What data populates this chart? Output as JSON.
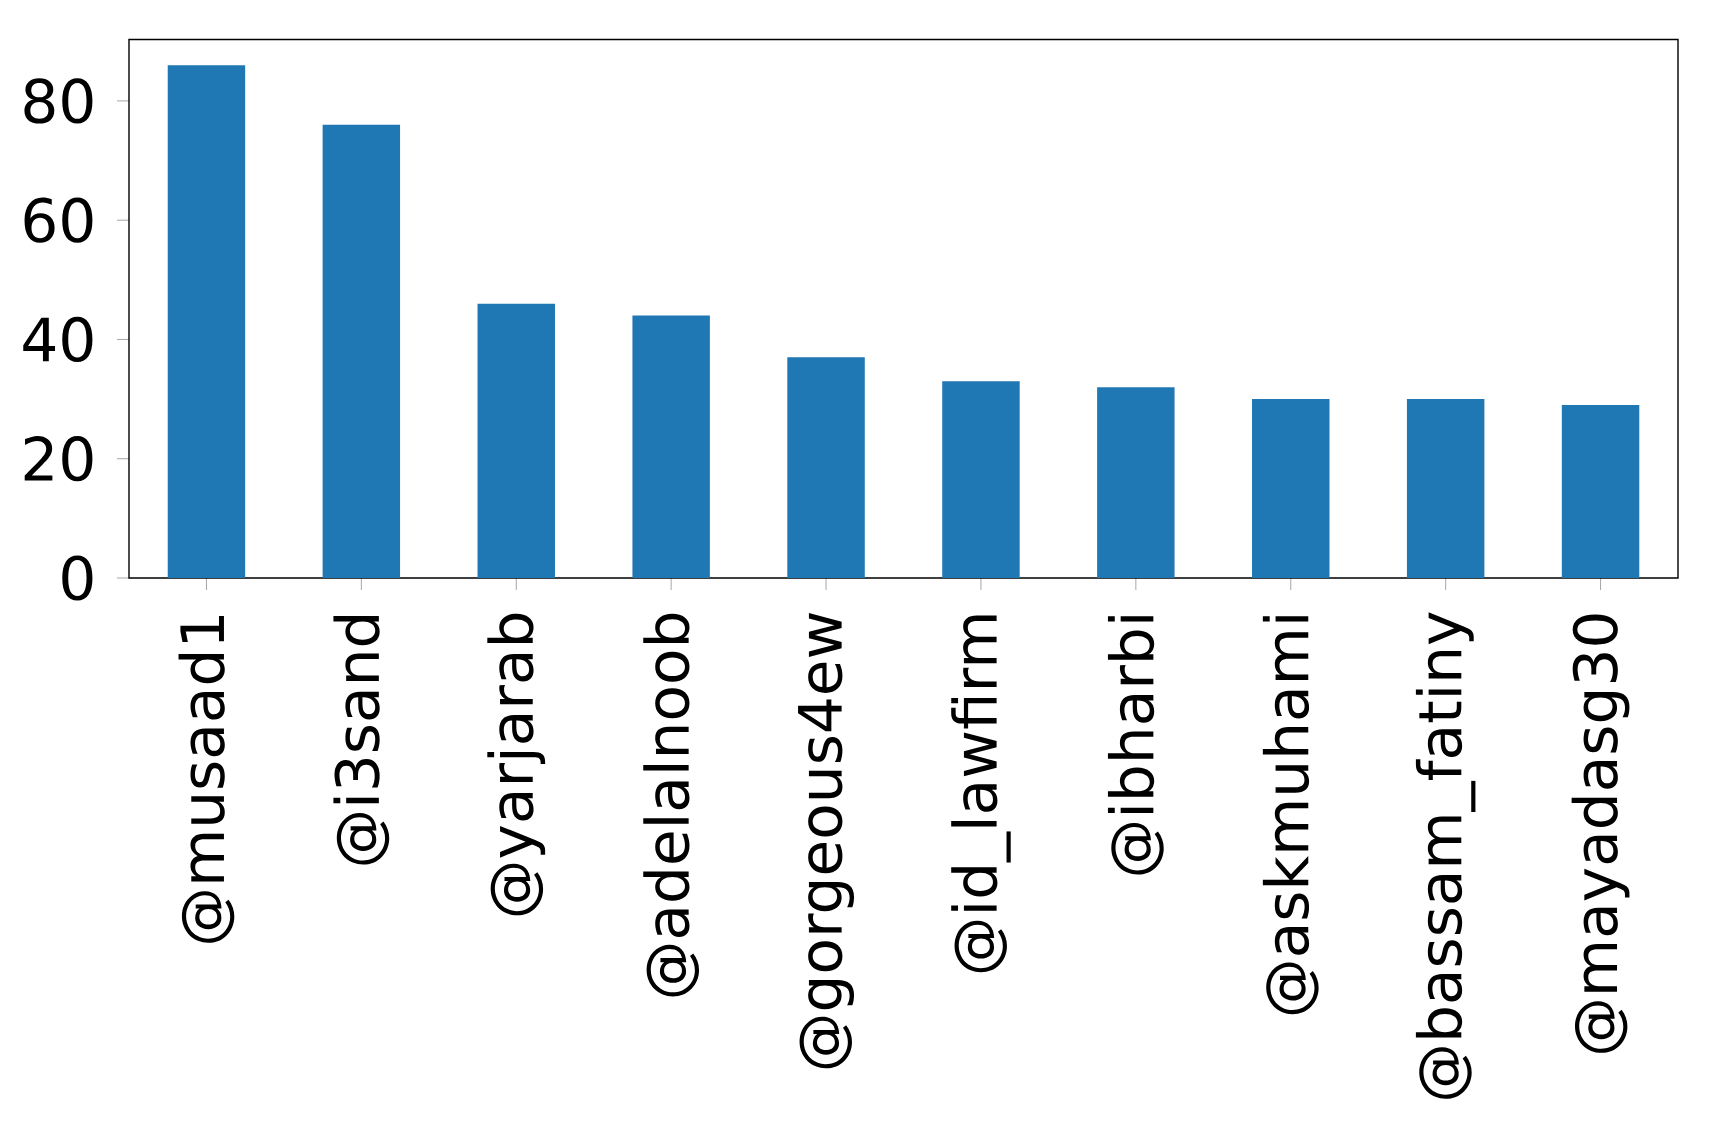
{
  "chart_data": {
    "type": "bar",
    "categories": [
      "@musaad1",
      "@i3sand",
      "@yarjarab",
      "@adelalnoob",
      "@gorgeous4ew",
      "@id_lawfirm",
      "@ibharbi",
      "@askmuhami",
      "@bassam_fatiny",
      "@mayadasg30"
    ],
    "values": [
      86,
      76,
      46,
      44,
      37,
      33,
      32,
      30,
      30,
      29
    ],
    "color": "#1f77b4",
    "ylim": [
      0,
      90.3
    ],
    "yticks": [
      0,
      20,
      40,
      60,
      80
    ]
  }
}
